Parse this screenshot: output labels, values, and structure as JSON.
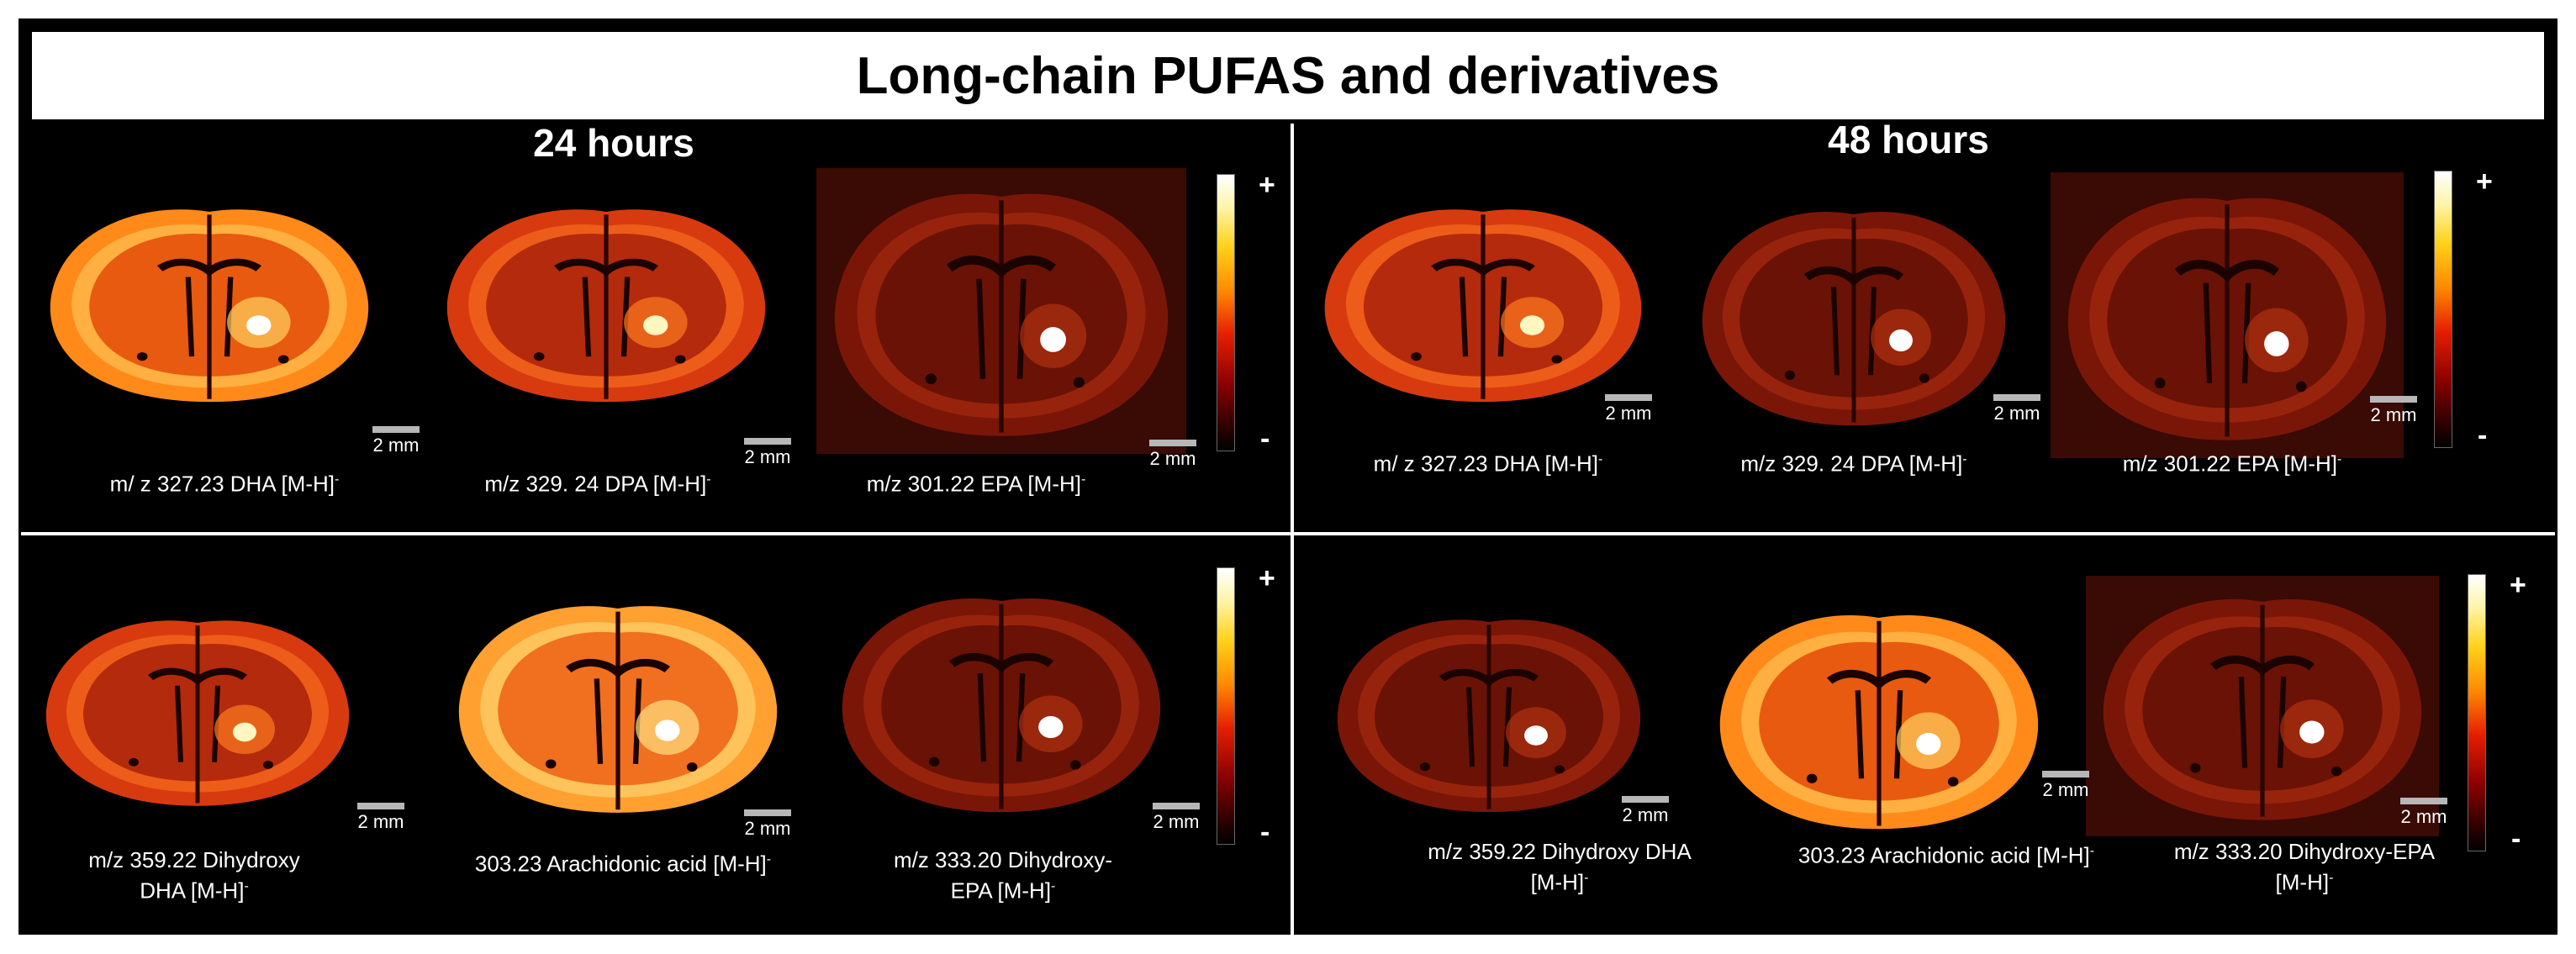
{
  "title": "Long-chain PUFAS and derivatives",
  "time_24": "24 hours",
  "time_48": "48 hours",
  "scale_bar": "2 mm",
  "colorbar": {
    "plus": "+",
    "minus": "-"
  },
  "top_left": [
    {
      "line1": "m/ z 327.23 DHA [M-H]",
      "line2": ""
    },
    {
      "line1": "m/z 329. 24 DPA [M-H]",
      "line2": ""
    },
    {
      "line1": "m/z 301.22 EPA [M-H]",
      "line2": ""
    }
  ],
  "top_right": [
    {
      "line1": "m/ z 327.23 DHA [M-H]",
      "line2": ""
    },
    {
      "line1": "m/z 329. 24 DPA [M-H]",
      "line2": ""
    },
    {
      "line1": "m/z 301.22 EPA [M-H]",
      "line2": ""
    }
  ],
  "bottom_left": [
    {
      "line1": "m/z 359.22  Dihydroxy",
      "line2": "DHA [M-H]"
    },
    {
      "line1": "303.23 Arachidonic acid [M-H]",
      "line2": ""
    },
    {
      "line1": "m/z 333.20 Dihydroxy-",
      "line2": "EPA [M-H]"
    }
  ],
  "bottom_right": [
    {
      "line1": "m/z 359.22  Dihydroxy DHA",
      "line2": "[M-H]"
    },
    {
      "line1": "303.23 Arachidonic acid [M-H]",
      "line2": ""
    },
    {
      "line1": "m/z 333.20 Dihydroxy-EPA",
      "line2": "[M-H]"
    }
  ],
  "colors": {
    "panel_background": "#000000",
    "colormap": [
      "#000000",
      "#8a0000",
      "#e61e00",
      "#ff8a00",
      "#ffd21a",
      "#ffffff"
    ]
  }
}
